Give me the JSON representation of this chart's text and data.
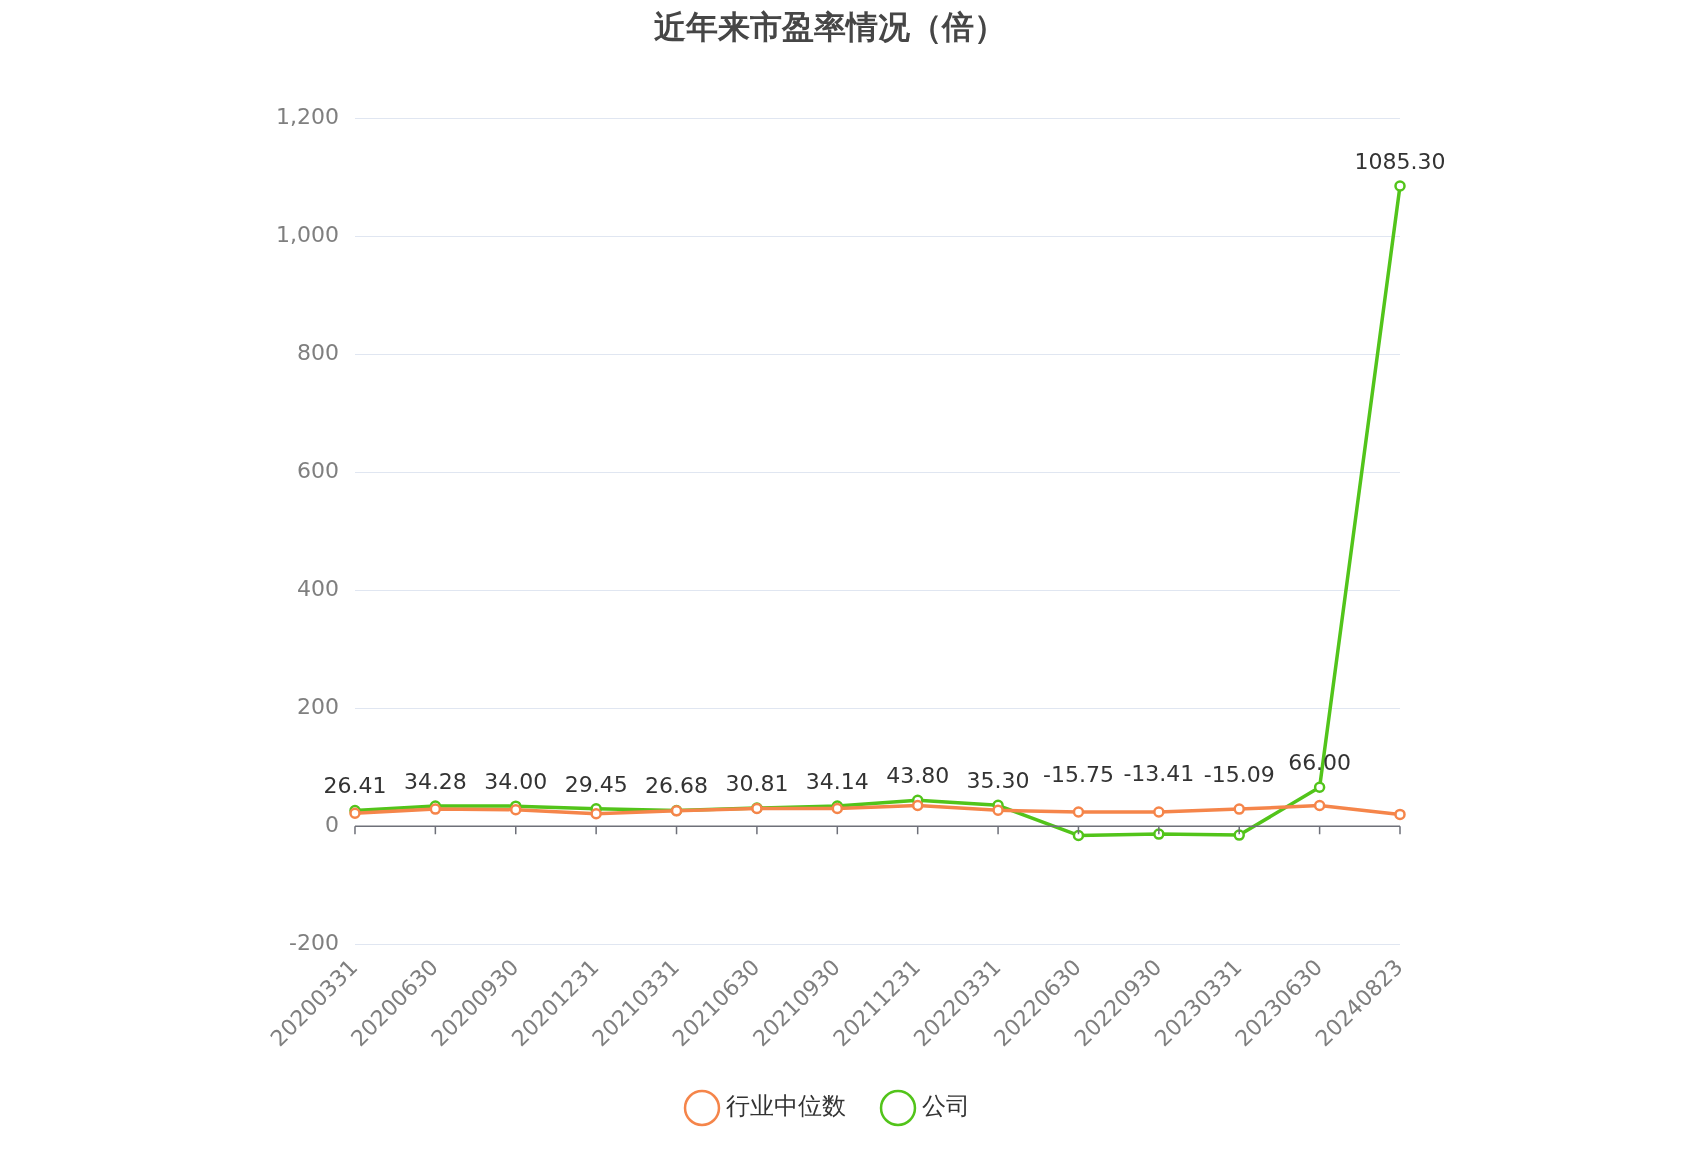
{
  "chart_data": {
    "type": "line",
    "title": "近年来市盈率情况（倍）",
    "categories": [
      "20200331",
      "20200630",
      "20200930",
      "20201231",
      "20210331",
      "20210630",
      "20210930",
      "20211231",
      "20220331",
      "20220630",
      "20220930",
      "20230331",
      "20230630",
      "20240823"
    ],
    "series": [
      {
        "name": "公司",
        "color": "#52c41a",
        "values": [
          26.41,
          34.28,
          34.0,
          29.45,
          26.68,
          30.81,
          34.14,
          43.8,
          35.3,
          -15.75,
          -13.41,
          -15.09,
          66.0,
          1085.3
        ],
        "value_labels": [
          "26.41",
          "34.28",
          "34.00",
          "29.45",
          "26.68",
          "30.81",
          "34.14",
          "43.80",
          "35.30",
          "-15.75",
          "-13.41",
          "-15.09",
          "66.00",
          "1085.30"
        ]
      },
      {
        "name": "行业中位数",
        "color": "#f5854a",
        "values": [
          22,
          29,
          28,
          21,
          26,
          30,
          30,
          35,
          27,
          24,
          24,
          29,
          35,
          20
        ]
      }
    ],
    "ylim": [
      -200,
      1200
    ],
    "yticks": [
      -200,
      0,
      200,
      400,
      600,
      800,
      {
        "value": 1000,
        "label": "1,000"
      },
      {
        "value": 1200,
        "label": "1,200"
      }
    ],
    "grid": "y",
    "legend": "bottom",
    "marker": "circle",
    "line_style": "solid"
  }
}
